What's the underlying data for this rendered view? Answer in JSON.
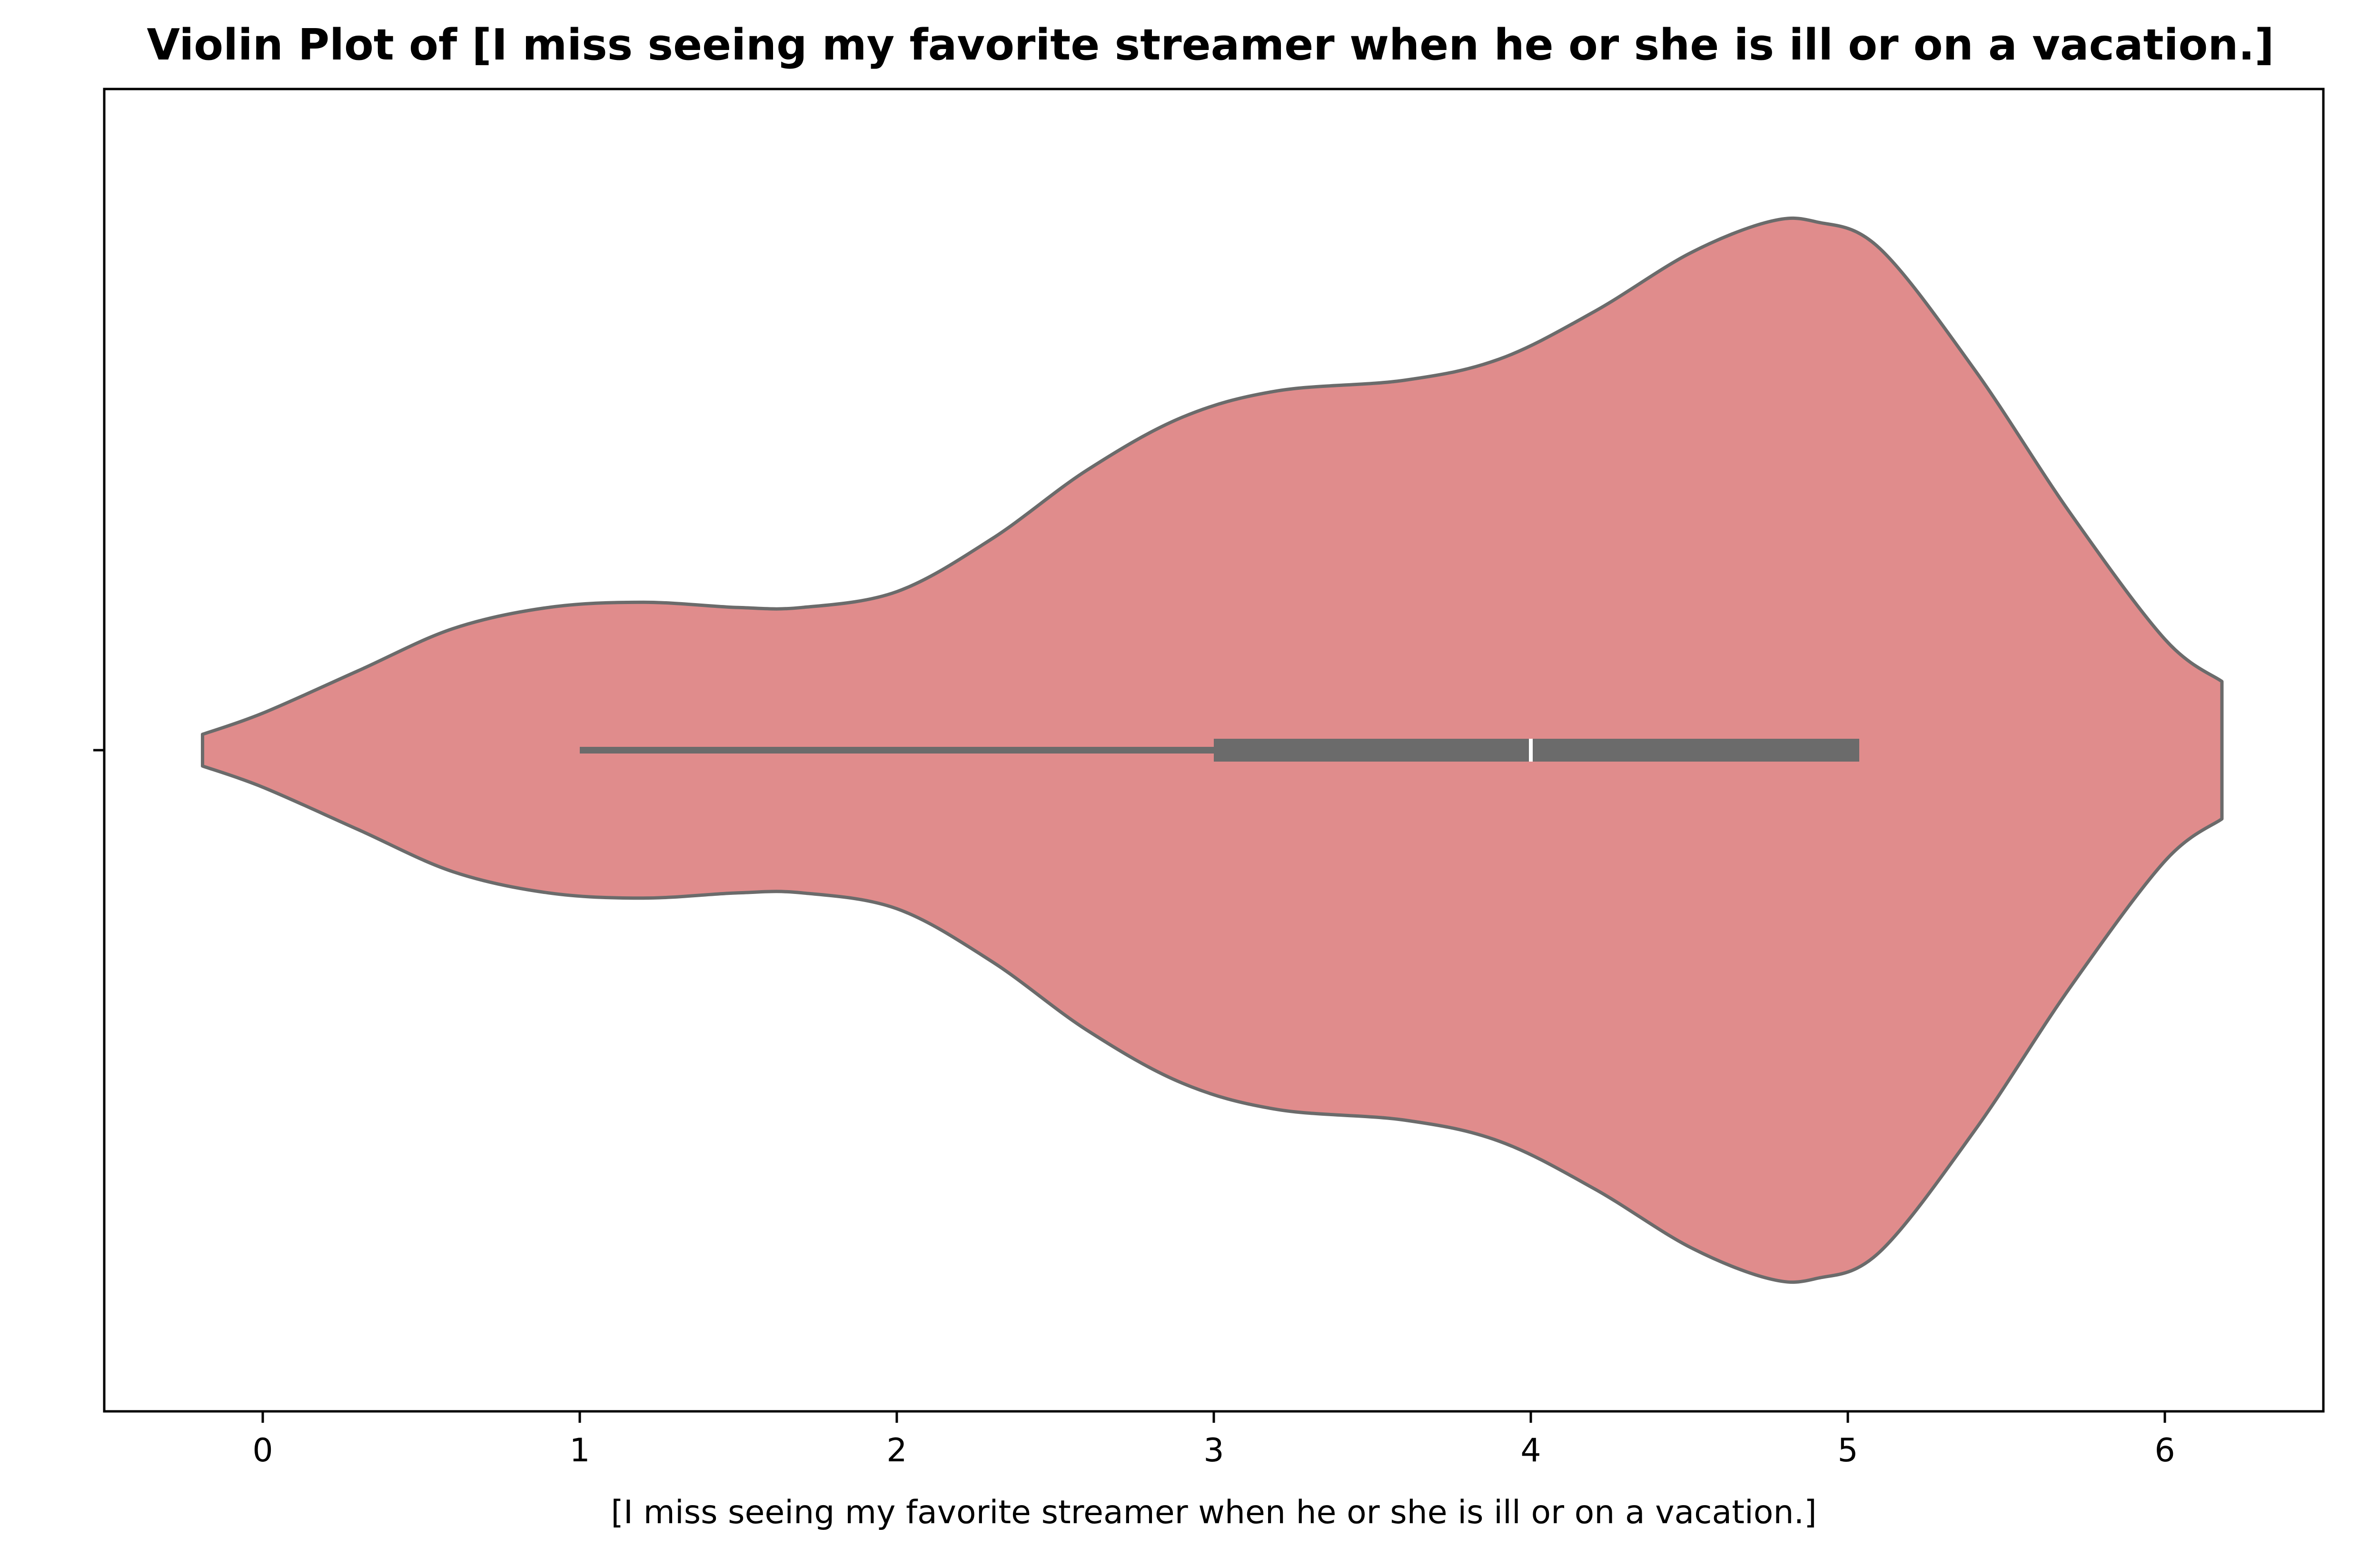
{
  "chart_data": {
    "type": "violin",
    "title": "Violin Plot of [I miss seeing my favorite streamer when he or she is ill or on a vacation.]",
    "xlabel": "[I miss seeing my favorite streamer when he or she is ill or on a vacation.]",
    "ylabel": "",
    "xlim": [
      -0.5,
      6.5
    ],
    "xticks": [
      0,
      1,
      2,
      3,
      4,
      5,
      6
    ],
    "xtick_labels": [
      "0",
      "1",
      "2",
      "3",
      "4",
      "5",
      "6"
    ],
    "grid": false,
    "colors": {
      "fill": "#e08c8c",
      "edge": "#6b6b6b",
      "box": "#6b6b6b",
      "median": "#ffffff"
    },
    "density": {
      "x": [
        -0.19,
        0.0,
        0.3,
        0.6,
        0.9,
        1.2,
        1.5,
        1.7,
        2.0,
        2.3,
        2.6,
        2.9,
        3.2,
        3.6,
        3.9,
        4.2,
        4.5,
        4.75,
        4.9,
        5.1,
        5.4,
        5.7,
        6.0,
        6.18
      ],
      "half_width": [
        0.03,
        0.07,
        0.15,
        0.23,
        0.27,
        0.28,
        0.27,
        0.27,
        0.3,
        0.4,
        0.53,
        0.63,
        0.68,
        0.7,
        0.74,
        0.83,
        0.94,
        1.0,
        1.0,
        0.95,
        0.72,
        0.45,
        0.21,
        0.13
      ]
    },
    "box": {
      "whisker_low": 1,
      "q1": 3,
      "median": 4,
      "q3": 5,
      "whisker_high": 5
    }
  }
}
